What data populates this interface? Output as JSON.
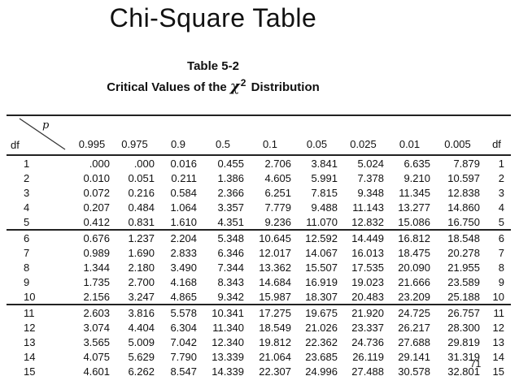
{
  "title": "Chi-Square Table",
  "caption": {
    "table_number": "Table 5-2",
    "subtitle_prefix": "Critical Values of the ",
    "chi_symbol": "χ",
    "chi_exponent": "2",
    "subtitle_suffix": " Distribution"
  },
  "table": {
    "corner": {
      "df_label": "df",
      "p_label": "p"
    },
    "p_headers": [
      "0.995",
      "0.975",
      "0.9",
      "0.5",
      "0.1",
      "0.05",
      "0.025",
      "0.01",
      "0.005"
    ],
    "df_header_right": "df",
    "groups": [
      [
        {
          "df": "1",
          "values": [
            ".000",
            ".000",
            "0.016",
            "0.455",
            "2.706",
            "3.841",
            "5.024",
            "6.635",
            "7.879"
          ]
        },
        {
          "df": "2",
          "values": [
            "0.010",
            "0.051",
            "0.211",
            "1.386",
            "4.605",
            "5.991",
            "7.378",
            "9.210",
            "10.597"
          ]
        },
        {
          "df": "3",
          "values": [
            "0.072",
            "0.216",
            "0.584",
            "2.366",
            "6.251",
            "7.815",
            "9.348",
            "11.345",
            "12.838"
          ]
        },
        {
          "df": "4",
          "values": [
            "0.207",
            "0.484",
            "1.064",
            "3.357",
            "7.779",
            "9.488",
            "11.143",
            "13.277",
            "14.860"
          ]
        },
        {
          "df": "5",
          "values": [
            "0.412",
            "0.831",
            "1.610",
            "4.351",
            "9.236",
            "11.070",
            "12.832",
            "15.086",
            "16.750"
          ]
        }
      ],
      [
        {
          "df": "6",
          "values": [
            "0.676",
            "1.237",
            "2.204",
            "5.348",
            "10.645",
            "12.592",
            "14.449",
            "16.812",
            "18.548"
          ]
        },
        {
          "df": "7",
          "values": [
            "0.989",
            "1.690",
            "2.833",
            "6.346",
            "12.017",
            "14.067",
            "16.013",
            "18.475",
            "20.278"
          ]
        },
        {
          "df": "8",
          "values": [
            "1.344",
            "2.180",
            "3.490",
            "7.344",
            "13.362",
            "15.507",
            "17.535",
            "20.090",
            "21.955"
          ]
        },
        {
          "df": "9",
          "values": [
            "1.735",
            "2.700",
            "4.168",
            "8.343",
            "14.684",
            "16.919",
            "19.023",
            "21.666",
            "23.589"
          ]
        },
        {
          "df": "10",
          "values": [
            "2.156",
            "3.247",
            "4.865",
            "9.342",
            "15.987",
            "18.307",
            "20.483",
            "23.209",
            "25.188"
          ]
        }
      ],
      [
        {
          "df": "11",
          "values": [
            "2.603",
            "3.816",
            "5.578",
            "10.341",
            "17.275",
            "19.675",
            "21.920",
            "24.725",
            "26.757"
          ]
        },
        {
          "df": "12",
          "values": [
            "3.074",
            "4.404",
            "6.304",
            "11.340",
            "18.549",
            "21.026",
            "23.337",
            "26.217",
            "28.300"
          ]
        },
        {
          "df": "13",
          "values": [
            "3.565",
            "5.009",
            "7.042",
            "12.340",
            "19.812",
            "22.362",
            "24.736",
            "27.688",
            "29.819"
          ]
        },
        {
          "df": "14",
          "values": [
            "4.075",
            "5.629",
            "7.790",
            "13.339",
            "21.064",
            "23.685",
            "26.119",
            "29.141",
            "31.319"
          ]
        },
        {
          "df": "15",
          "values": [
            "4.601",
            "6.262",
            "8.547",
            "14.339",
            "22.307",
            "24.996",
            "27.488",
            "30.578",
            "32.801"
          ]
        }
      ]
    ]
  },
  "page_number": "71"
}
